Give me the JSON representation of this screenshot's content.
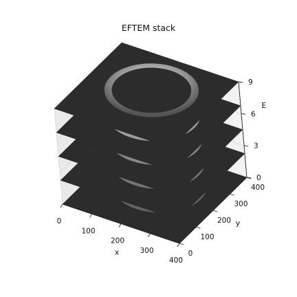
{
  "chart_data": {
    "type": "surface3d",
    "title": "EFTEM stack",
    "xlabel": "x",
    "ylabel": "y",
    "zlabel": "E",
    "xlim": [
      0,
      400
    ],
    "ylim": [
      0,
      400
    ],
    "zlim": [
      0,
      9
    ],
    "xticks": [
      "0",
      "100",
      "200",
      "300",
      "400"
    ],
    "yticks": [
      "0",
      "100",
      "200",
      "300",
      "400"
    ],
    "zticks": [
      "0",
      "3",
      "6",
      "9"
    ],
    "slice_levels": [
      0,
      2.25,
      4.5,
      6.75,
      9
    ],
    "slices": [
      {
        "E": 0,
        "ring_intensity": 0.35
      },
      {
        "E": 2.25,
        "ring_intensity": 0.45
      },
      {
        "E": 4.5,
        "ring_intensity": 0.55
      },
      {
        "E": 6.75,
        "ring_intensity": 0.65
      },
      {
        "E": 9,
        "ring_intensity": 0.95
      }
    ],
    "colors": {
      "slice": "#2c2c2c",
      "ring_low": "#555555",
      "ring_high": "#f2f2f2"
    },
    "grid": true
  }
}
